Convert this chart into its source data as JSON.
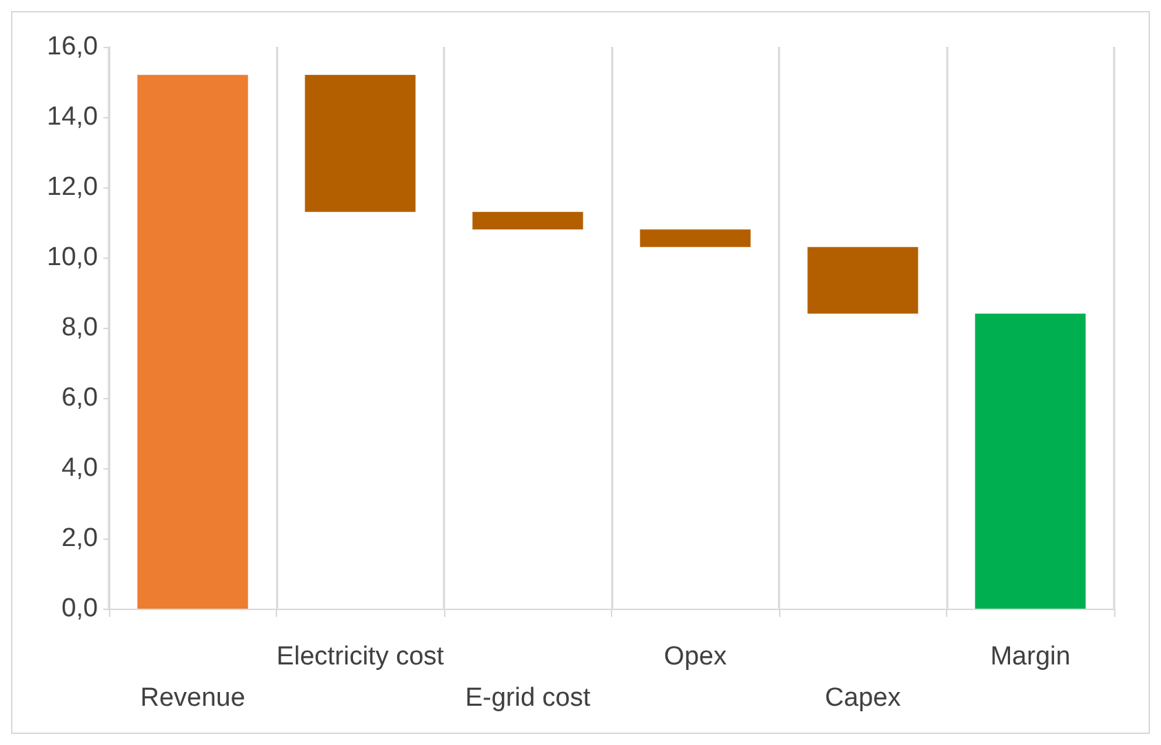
{
  "chart_data": {
    "type": "bar",
    "categories": [
      "Revenue",
      "Electricity cost",
      "E-grid cost",
      "Opex",
      "Capex",
      "Margin"
    ],
    "values": [
      15.2,
      3.9,
      0.5,
      0.5,
      1.9,
      8.4
    ],
    "base": [
      0,
      11.3,
      10.8,
      10.3,
      8.4,
      0
    ],
    "colors": [
      "#ed7d31",
      "#b35f00",
      "#b35f00",
      "#b35f00",
      "#b35f00",
      "#00b050"
    ],
    "ylim": [
      0,
      16
    ],
    "yticks": [
      {
        "value": 0,
        "label": "0,0"
      },
      {
        "value": 2,
        "label": "2,0"
      },
      {
        "value": 4,
        "label": "4,0"
      },
      {
        "value": 6,
        "label": "6,0"
      },
      {
        "value": 8,
        "label": "8,0"
      },
      {
        "value": 10,
        "label": "10,0"
      },
      {
        "value": 12,
        "label": "12,0"
      },
      {
        "value": 14,
        "label": "14,0"
      },
      {
        "value": 16,
        "label": "16,0"
      }
    ],
    "grid": "x"
  }
}
